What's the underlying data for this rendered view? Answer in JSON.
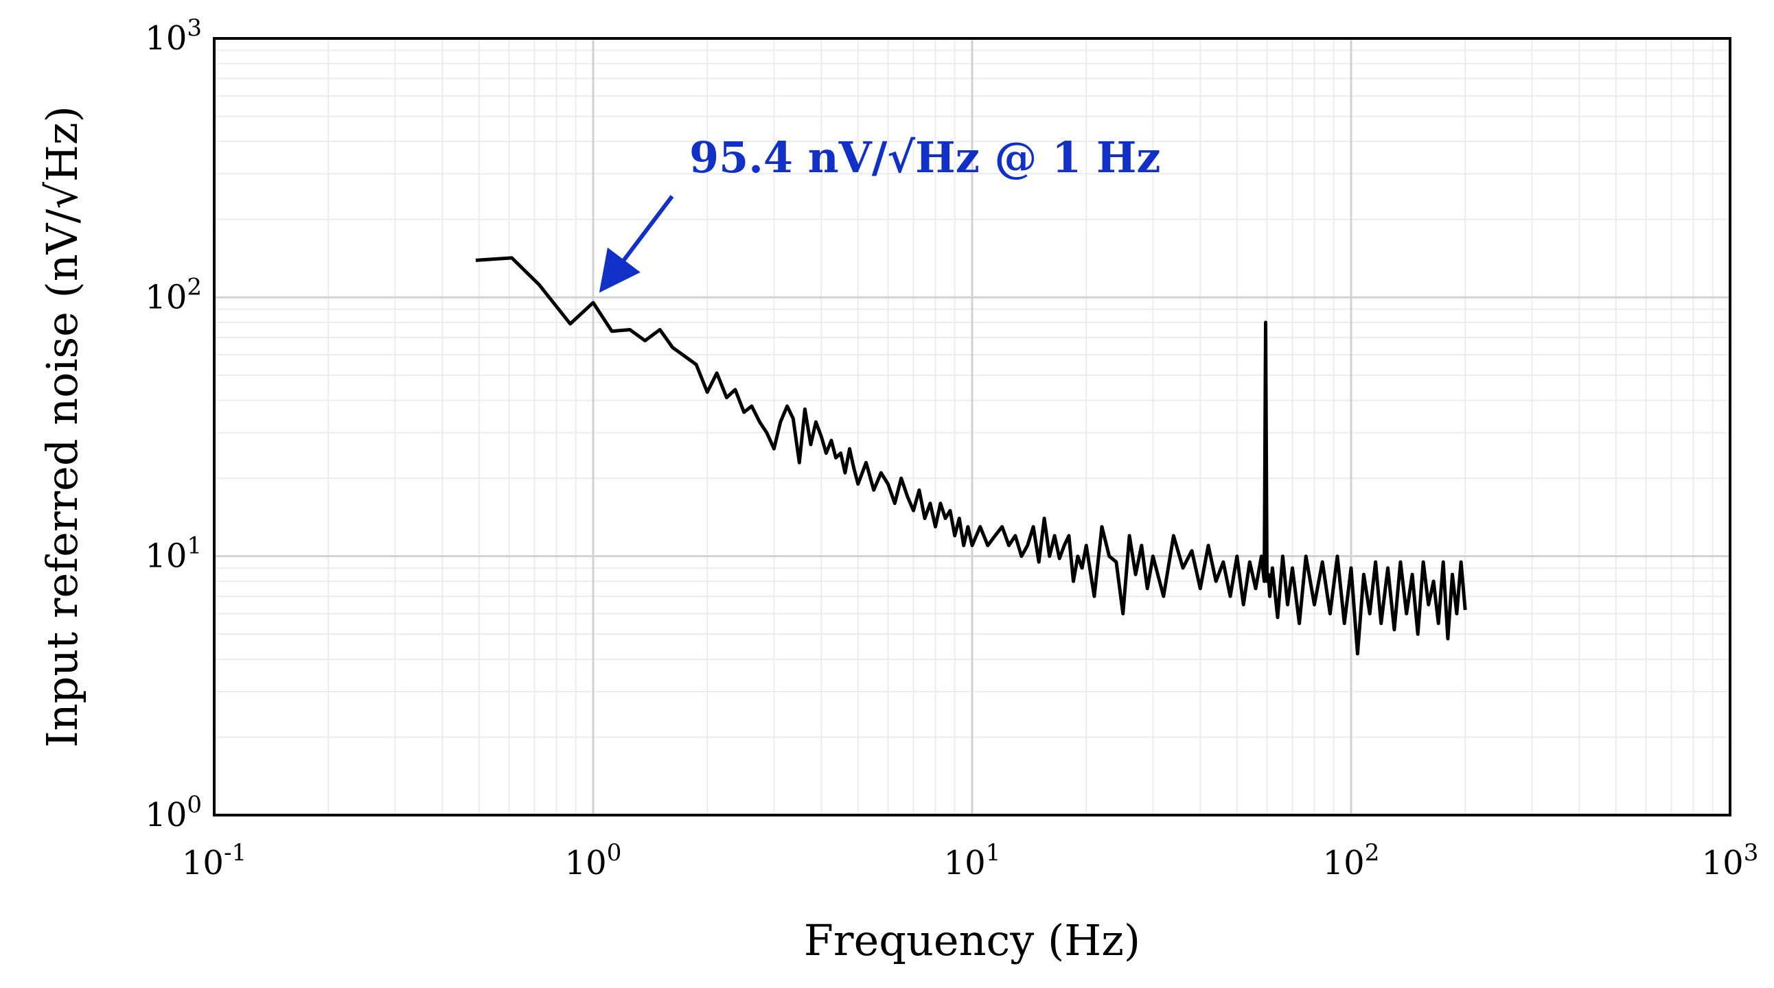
{
  "chart_data": {
    "type": "line",
    "title": "",
    "xlabel": "Frequency (Hz)",
    "ylabel": "Input referred noise (nV/√Hz)",
    "xscale": "log",
    "yscale": "log",
    "xlim": [
      0.1,
      1000
    ],
    "ylim": [
      1,
      1000
    ],
    "grid": true,
    "legend": "none",
    "colors": {
      "line": "#000000",
      "annotation": "#1030c8",
      "grid_major": "#d2d2d2",
      "grid_minor": "#ececec"
    },
    "xticks": [
      {
        "value": 0.1,
        "base": "10",
        "exp": "-1"
      },
      {
        "value": 1,
        "base": "10",
        "exp": "0"
      },
      {
        "value": 10,
        "base": "10",
        "exp": "1"
      },
      {
        "value": 100,
        "base": "10",
        "exp": "2"
      },
      {
        "value": 1000,
        "base": "10",
        "exp": "3"
      }
    ],
    "yticks": [
      {
        "value": 1,
        "base": "10",
        "exp": "0"
      },
      {
        "value": 10,
        "base": "10",
        "exp": "1"
      },
      {
        "value": 100,
        "base": "10",
        "exp": "2"
      },
      {
        "value": 1000,
        "base": "10",
        "exp": "3"
      }
    ],
    "series": [
      {
        "name": "Input referred noise",
        "x": [
          0.49,
          0.61,
          0.72,
          0.87,
          1.0,
          1.12,
          1.25,
          1.37,
          1.5,
          1.62,
          1.75,
          1.87,
          2.0,
          2.12,
          2.25,
          2.37,
          2.5,
          2.62,
          2.75,
          2.87,
          3.0,
          3.12,
          3.25,
          3.37,
          3.5,
          3.62,
          3.75,
          3.87,
          4.0,
          4.12,
          4.25,
          4.37,
          4.5,
          4.62,
          4.75,
          4.87,
          5.0,
          5.25,
          5.5,
          5.75,
          6.0,
          6.25,
          6.5,
          6.75,
          7.0,
          7.25,
          7.5,
          7.75,
          8.0,
          8.25,
          8.5,
          8.75,
          9.0,
          9.25,
          9.5,
          9.75,
          10.0,
          10.5,
          11.0,
          11.5,
          12.0,
          12.5,
          13.0,
          13.5,
          14.0,
          14.5,
          15.0,
          15.5,
          16.0,
          16.5,
          17.0,
          17.5,
          18.0,
          18.5,
          19.0,
          19.5,
          20.0,
          21.0,
          22.0,
          23.0,
          24.0,
          25.0,
          26.0,
          27.0,
          28.0,
          29.0,
          30.0,
          32.0,
          34.0,
          36.0,
          38.0,
          40.0,
          42.0,
          44.0,
          46.0,
          48.0,
          50.0,
          52.0,
          54.0,
          56.0,
          58.0,
          59.0,
          59.5,
          60.0,
          60.5,
          61.0,
          62.0,
          64.0,
          66.0,
          68.0,
          70.0,
          73.0,
          76.0,
          80.0,
          84.0,
          88.0,
          92.0,
          96.0,
          100.0,
          104.0,
          108.0,
          112.0,
          116.0,
          120.0,
          125.0,
          130.0,
          135.0,
          140.0,
          145.0,
          150.0,
          155.0,
          160.0,
          165.0,
          170.0,
          175.0,
          180.0,
          185.0,
          190.0,
          195.0,
          200.0
        ],
        "y": [
          139,
          142,
          112,
          79,
          95.4,
          74,
          75,
          68,
          75,
          64,
          59,
          55,
          43,
          51,
          41,
          44,
          36,
          38,
          33,
          30,
          26,
          33,
          38,
          34,
          23,
          37,
          27,
          33,
          29,
          25,
          28,
          24,
          25,
          21,
          26,
          22,
          19,
          23,
          18,
          21,
          19,
          16,
          20,
          17,
          15,
          18,
          14,
          16,
          13,
          16,
          14,
          15,
          12,
          14,
          11,
          13,
          11,
          13,
          11,
          12,
          13,
          11,
          12,
          10,
          11,
          13,
          9.5,
          14,
          10,
          12,
          9.8,
          11,
          12,
          8,
          10,
          9,
          11,
          7,
          13,
          10,
          9.5,
          6.0,
          12,
          8.5,
          11,
          7.5,
          10,
          7.0,
          12,
          9,
          10.5,
          7.5,
          11,
          8,
          9.5,
          7,
          10,
          6.5,
          9.5,
          7.5,
          10,
          8,
          80,
          8,
          8.5,
          7,
          9,
          5.8,
          10,
          6.5,
          9,
          5.5,
          10,
          6.5,
          9.5,
          6,
          10,
          5.5,
          9,
          4.2,
          8.5,
          6,
          9.5,
          5.5,
          9,
          5.2,
          9.5,
          6,
          8.5,
          5,
          9.5,
          6.5,
          8,
          5.5,
          9.5,
          4.8,
          8.5,
          6,
          9.5,
          6.2
        ]
      }
    ],
    "annotations": [
      {
        "text": "95.4 nV/√Hz @ 1 Hz",
        "x": 1.0,
        "y": 95.4
      }
    ]
  }
}
